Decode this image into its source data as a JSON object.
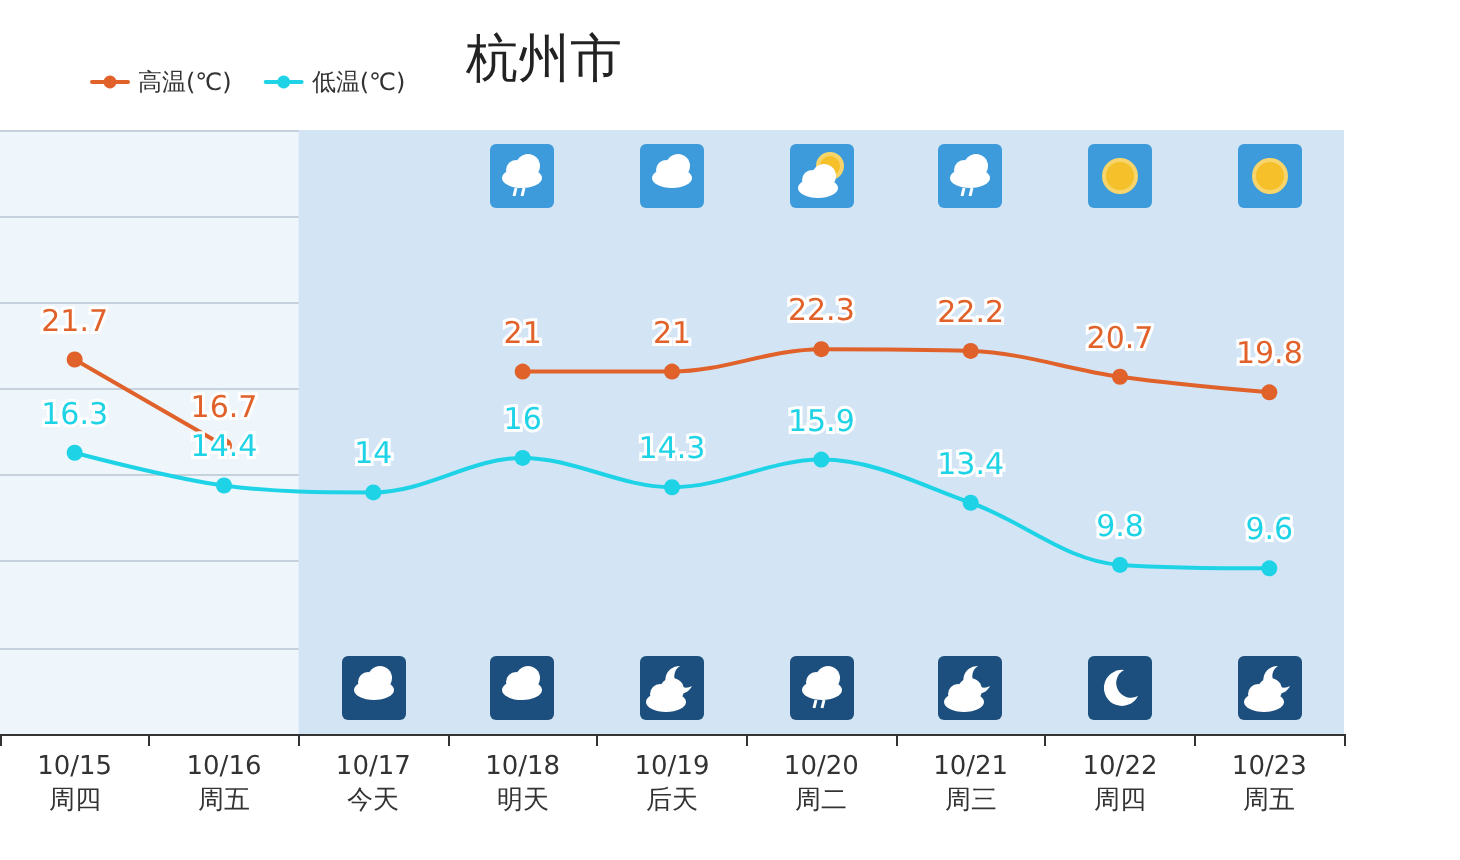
{
  "chart_data": {
    "type": "line",
    "title": "杭州市",
    "categories": [
      "10/15\n周四",
      "10/16\n周五",
      "10/17\n今天",
      "10/18\n明天",
      "10/19\n后天",
      "10/20\n周二",
      "10/21\n周三",
      "10/22\n周四",
      "10/23\n周五"
    ],
    "series": [
      {
        "name": "高温(℃)",
        "color": "#e0622a",
        "values": [
          21.7,
          16.7,
          null,
          21,
          21,
          22.3,
          22.2,
          20.7,
          19.8
        ]
      },
      {
        "name": "低温(℃)",
        "color": "#1fd3e6",
        "values": [
          16.3,
          14.4,
          14,
          16,
          14.3,
          15.9,
          13.4,
          9.8,
          9.6
        ]
      }
    ],
    "ylim": [
      0,
      35
    ],
    "yticks": [
      {
        "value": 0,
        "label": null
      },
      {
        "value": 5,
        "label": null
      },
      {
        "value": 10,
        "label": null
      },
      {
        "value": 15,
        "label": null
      },
      {
        "value": 20,
        "label": null
      },
      {
        "value": 25,
        "label": null
      },
      {
        "value": 30,
        "label": null
      },
      {
        "value": 35,
        "label": null
      }
    ],
    "tick_labels": "x",
    "grid": "y",
    "legend": "top left",
    "marker": "circle",
    "line_style": "solid",
    "data_labels": true,
    "bands": [
      {
        "axis": "x",
        "from": "10/17\n今天",
        "to": "10/23\n周五",
        "color": "#d3e4f5"
      }
    ]
  }
}
